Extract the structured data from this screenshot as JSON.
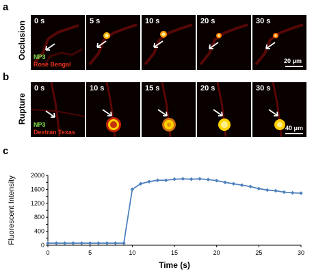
{
  "panels": {
    "a": {
      "letter": "a",
      "row_label": "Occlusion",
      "times": [
        "0 s",
        "5 s",
        "10 s",
        "20 s",
        "30 s"
      ],
      "legend_green": "NP3",
      "legend_red": "Rose Bengal",
      "scale_label": "20 μm"
    },
    "b": {
      "letter": "b",
      "row_label": "Rupture",
      "times": [
        "0 s",
        "10 s",
        "15 s",
        "20 s",
        "30 s"
      ],
      "legend_green": "NP3",
      "legend_red": "Dextran Texas",
      "scale_label": "40 μm"
    },
    "c": {
      "letter": "c"
    }
  },
  "chart_data": {
    "type": "line",
    "xlabel": "Time (s)",
    "ylabel": "Fluorescent Intensity",
    "xlim": [
      0,
      30
    ],
    "ylim": [
      0,
      2000
    ],
    "xticks": [
      0,
      5,
      10,
      15,
      20,
      25,
      30
    ],
    "yticks": [
      0,
      200,
      400,
      600,
      800,
      1000,
      1200,
      1400,
      1600,
      1800,
      2000
    ],
    "series": [
      {
        "color": "#4f81bd",
        "x": [
          0,
          1,
          2,
          3,
          4,
          5,
          6,
          7,
          8,
          9,
          10,
          11,
          12,
          13,
          14,
          15,
          16,
          17,
          18,
          19,
          20,
          21,
          22,
          23,
          24,
          25,
          26,
          27,
          28,
          29,
          30
        ],
        "y": [
          60,
          60,
          60,
          60,
          60,
          60,
          60,
          60,
          60,
          60,
          1600,
          1760,
          1820,
          1860,
          1860,
          1890,
          1900,
          1890,
          1900,
          1880,
          1850,
          1800,
          1760,
          1720,
          1680,
          1620,
          1580,
          1560,
          1520,
          1500,
          1490
        ]
      }
    ]
  }
}
